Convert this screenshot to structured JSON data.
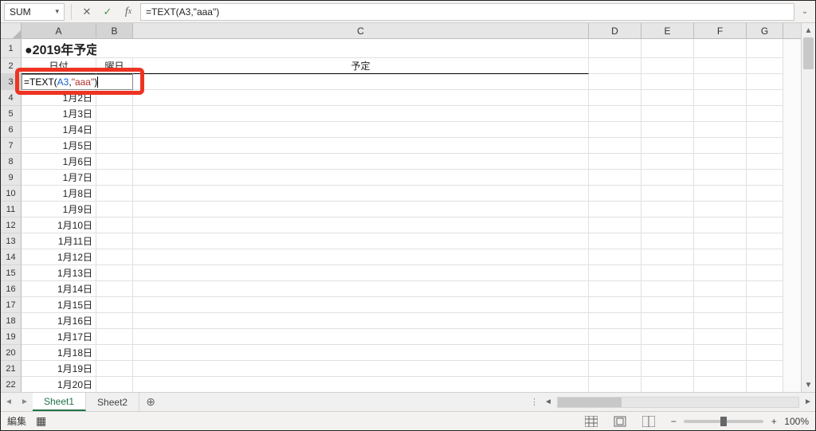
{
  "namebox": {
    "value": "SUM"
  },
  "formula_bar": {
    "text": "=TEXT(A3,\"aaa\")"
  },
  "editing_cell": {
    "prefix": "=TEXT(",
    "ref": "A3",
    "sep": ",",
    "str": "\"aaa\"",
    "suffix": ")"
  },
  "columns": [
    {
      "label": "A",
      "w": "wA",
      "active": true
    },
    {
      "label": "B",
      "w": "wB",
      "active": true
    },
    {
      "label": "C",
      "w": "wC",
      "active": false
    },
    {
      "label": "D",
      "w": "wD",
      "active": false
    },
    {
      "label": "E",
      "w": "wE",
      "active": false
    },
    {
      "label": "F",
      "w": "wF",
      "active": false
    },
    {
      "label": "G",
      "w": "wG",
      "active": false
    }
  ],
  "title": "●2019年予定表",
  "header_row": {
    "a": "日付",
    "b": "曜日",
    "c": "予定"
  },
  "dates": [
    "1月2日",
    "1月3日",
    "1月4日",
    "1月5日",
    "1月6日",
    "1月7日",
    "1月8日",
    "1月9日",
    "1月10日",
    "1月11日",
    "1月12日",
    "1月13日",
    "1月14日",
    "1月15日",
    "1月16日",
    "1月17日",
    "1月18日",
    "1月19日",
    "1月20日"
  ],
  "row_numbers": [
    1,
    2,
    3,
    4,
    5,
    6,
    7,
    8,
    9,
    10,
    11,
    12,
    13,
    14,
    15,
    16,
    17,
    18,
    19,
    20,
    21,
    22
  ],
  "tabs": {
    "active": "Sheet1",
    "other": "Sheet2"
  },
  "status": {
    "mode": "編集",
    "zoom": "100%"
  },
  "colors": {
    "accent": "#217346",
    "highlight_border": "#ee3322",
    "ref_token": "#1060d0",
    "str_token": "#b03030"
  }
}
